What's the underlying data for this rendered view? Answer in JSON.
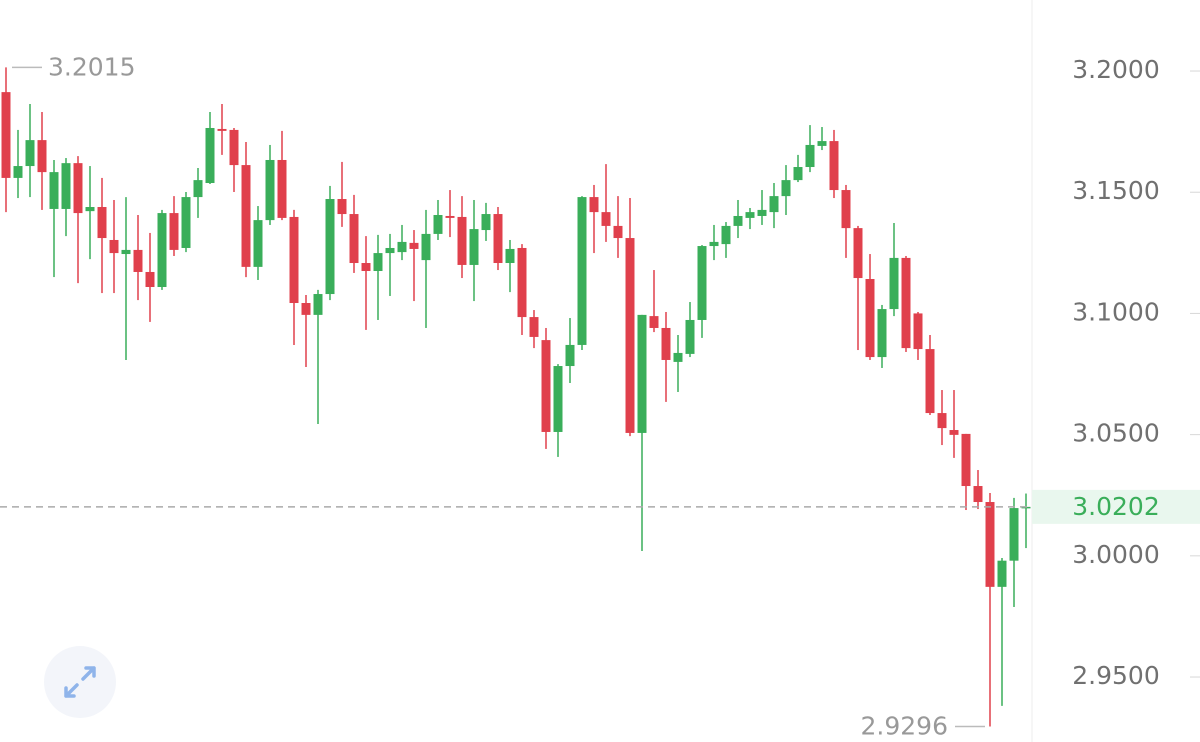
{
  "chart_data": {
    "type": "candlestick",
    "open": [
      3.1913,
      3.1559,
      3.1608,
      3.1715,
      3.1431,
      3.1431,
      3.162,
      3.1422,
      3.1439,
      3.1303,
      3.1245,
      3.1262,
      3.1171,
      3.1109,
      3.1414,
      3.127,
      3.148,
      3.1538,
      3.1761,
      3.1757,
      3.1612,
      3.1192,
      3.1385,
      3.1633,
      3.1398,
      3.1043,
      3.0994,
      3.108,
      3.1472,
      3.141,
      3.1208,
      3.1175,
      3.1249,
      3.1253,
      3.1291,
      3.122,
      3.1328,
      3.1402,
      3.1398,
      3.12,
      3.1344,
      3.141,
      3.1208,
      3.127,
      3.0985,
      3.089,
      3.0511,
      3.0783,
      3.087,
      3.148,
      3.1418,
      3.1361,
      3.1311,
      3.0507,
      3.0989,
      3.094,
      3.08,
      3.0833,
      3.0973,
      3.1278,
      3.1286,
      3.1361,
      3.1394,
      3.1402,
      3.1418,
      3.1484,
      3.155,
      3.1604,
      3.1691,
      3.1711,
      3.1509,
      3.1352,
      3.1142,
      3.082,
      3.1018,
      3.1229,
      3.1,
      3.0853,
      3.0589,
      3.0519,
      3.0503,
      3.0288,
      3.0222,
      2.9872,
      2.998,
      3.0197
    ],
    "high": [
      3.2015,
      3.1757,
      3.1864,
      3.1831,
      3.1633,
      3.1641,
      3.1649,
      3.1608,
      3.1559,
      3.1468,
      3.148,
      3.1406,
      3.1332,
      3.1427,
      3.1484,
      3.1501,
      3.16,
      3.1831,
      3.1864,
      3.1765,
      3.1707,
      3.1443,
      3.1695,
      3.1753,
      3.1427,
      3.1076,
      3.1097,
      3.1526,
      3.1625,
      3.1489,
      3.1319,
      3.1324,
      3.1328,
      3.1365,
      3.1344,
      3.1427,
      3.1468,
      3.1509,
      3.1484,
      3.1468,
      3.1456,
      3.1439,
      3.1303,
      3.1286,
      3.1014,
      3.094,
      3.0791,
      3.0981,
      3.1484,
      3.153,
      3.1616,
      3.1484,
      3.1476,
      3.0994,
      3.1179,
      3.1006,
      3.0911,
      3.1047,
      3.1282,
      3.1365,
      3.1377,
      3.1468,
      3.1435,
      3.1509,
      3.1538,
      3.1612,
      3.1654,
      3.1777,
      3.1769,
      3.1757,
      3.153,
      3.1361,
      3.1245,
      3.1035,
      3.1373,
      3.1237,
      3.1006,
      3.0911,
      3.0684,
      3.0684,
      3.0503,
      3.0354,
      3.0259,
      2.9991,
      3.0239,
      3.0257
    ],
    "low": [
      3.1418,
      3.1476,
      3.148,
      3.1427,
      3.115,
      3.1319,
      3.1125,
      3.1224,
      3.1084,
      3.1084,
      3.0808,
      3.1055,
      3.0965,
      3.1097,
      3.1237,
      3.1253,
      3.1394,
      3.1534,
      3.1654,
      3.1501,
      3.115,
      3.1138,
      3.1365,
      3.1385,
      3.087,
      3.0779,
      3.0544,
      3.1055,
      3.1357,
      3.1167,
      3.0932,
      3.0973,
      3.1072,
      3.122,
      3.1051,
      3.094,
      3.1303,
      3.1315,
      3.1146,
      3.1051,
      3.1299,
      3.1179,
      3.1088,
      3.0911,
      3.0857,
      3.0441,
      3.0408,
      3.0713,
      3.0849,
      3.1249,
      3.1295,
      3.1229,
      3.0494,
      3.002,
      3.0923,
      3.0635,
      3.0676,
      3.082,
      3.0899,
      3.122,
      3.1229,
      3.1311,
      3.1348,
      3.1365,
      3.1352,
      3.1406,
      3.1542,
      3.1583,
      3.1674,
      3.1476,
      3.1229,
      3.0849,
      3.0808,
      3.0775,
      3.0989,
      3.0841,
      3.0808,
      3.0581,
      3.0457,
      3.0404,
      3.0189,
      3.0193,
      2.9296,
      2.9381,
      2.9789,
      3.0032
    ],
    "close": [
      3.1559,
      3.1608,
      3.1715,
      3.1583,
      3.1583,
      3.162,
      3.1414,
      3.1439,
      3.1311,
      3.1249,
      3.1262,
      3.1171,
      3.1109,
      3.1414,
      3.1262,
      3.148,
      3.155,
      3.1765,
      3.1753,
      3.1612,
      3.1192,
      3.1385,
      3.1633,
      3.1394,
      3.1043,
      3.0994,
      3.108,
      3.1472,
      3.141,
      3.1208,
      3.1175,
      3.1249,
      3.127,
      3.1295,
      3.1266,
      3.1328,
      3.1406,
      3.1394,
      3.12,
      3.1348,
      3.141,
      3.1208,
      3.1266,
      3.0985,
      3.0903,
      3.0511,
      3.0783,
      3.087,
      3.148,
      3.1418,
      3.1361,
      3.1311,
      3.0507,
      3.0994,
      3.094,
      3.0808,
      3.0837,
      3.0973,
      3.1278,
      3.1295,
      3.1361,
      3.1402,
      3.1418,
      3.1427,
      3.1484,
      3.155,
      3.1604,
      3.1695,
      3.1711,
      3.1509,
      3.1352,
      3.1146,
      3.082,
      3.1018,
      3.1229,
      3.0857,
      3.0853,
      3.0589,
      3.0527,
      3.0499,
      3.0288,
      3.0222,
      2.9872,
      2.998,
      3.0197,
      3.0202
    ],
    "up_color": "#3aae5a",
    "down_color": "#e0404c",
    "ylim": [
      2.9232,
      3.2293
    ],
    "yticks": [
      {
        "value": 3.2,
        "label": "3.2000"
      },
      {
        "value": 3.15,
        "label": "3.1500"
      },
      {
        "value": 3.1,
        "label": "3.1000"
      },
      {
        "value": 3.05,
        "label": "3.0500"
      },
      {
        "value": 3.0,
        "label": "3.0000"
      },
      {
        "value": 2.95,
        "label": "2.9500"
      }
    ],
    "max_label": {
      "value": 3.2015,
      "label": "3.2015"
    },
    "min_label": {
      "value": 2.9296,
      "label": "2.9296"
    },
    "last_price": {
      "value": 3.0202,
      "label": "3.0202"
    }
  }
}
